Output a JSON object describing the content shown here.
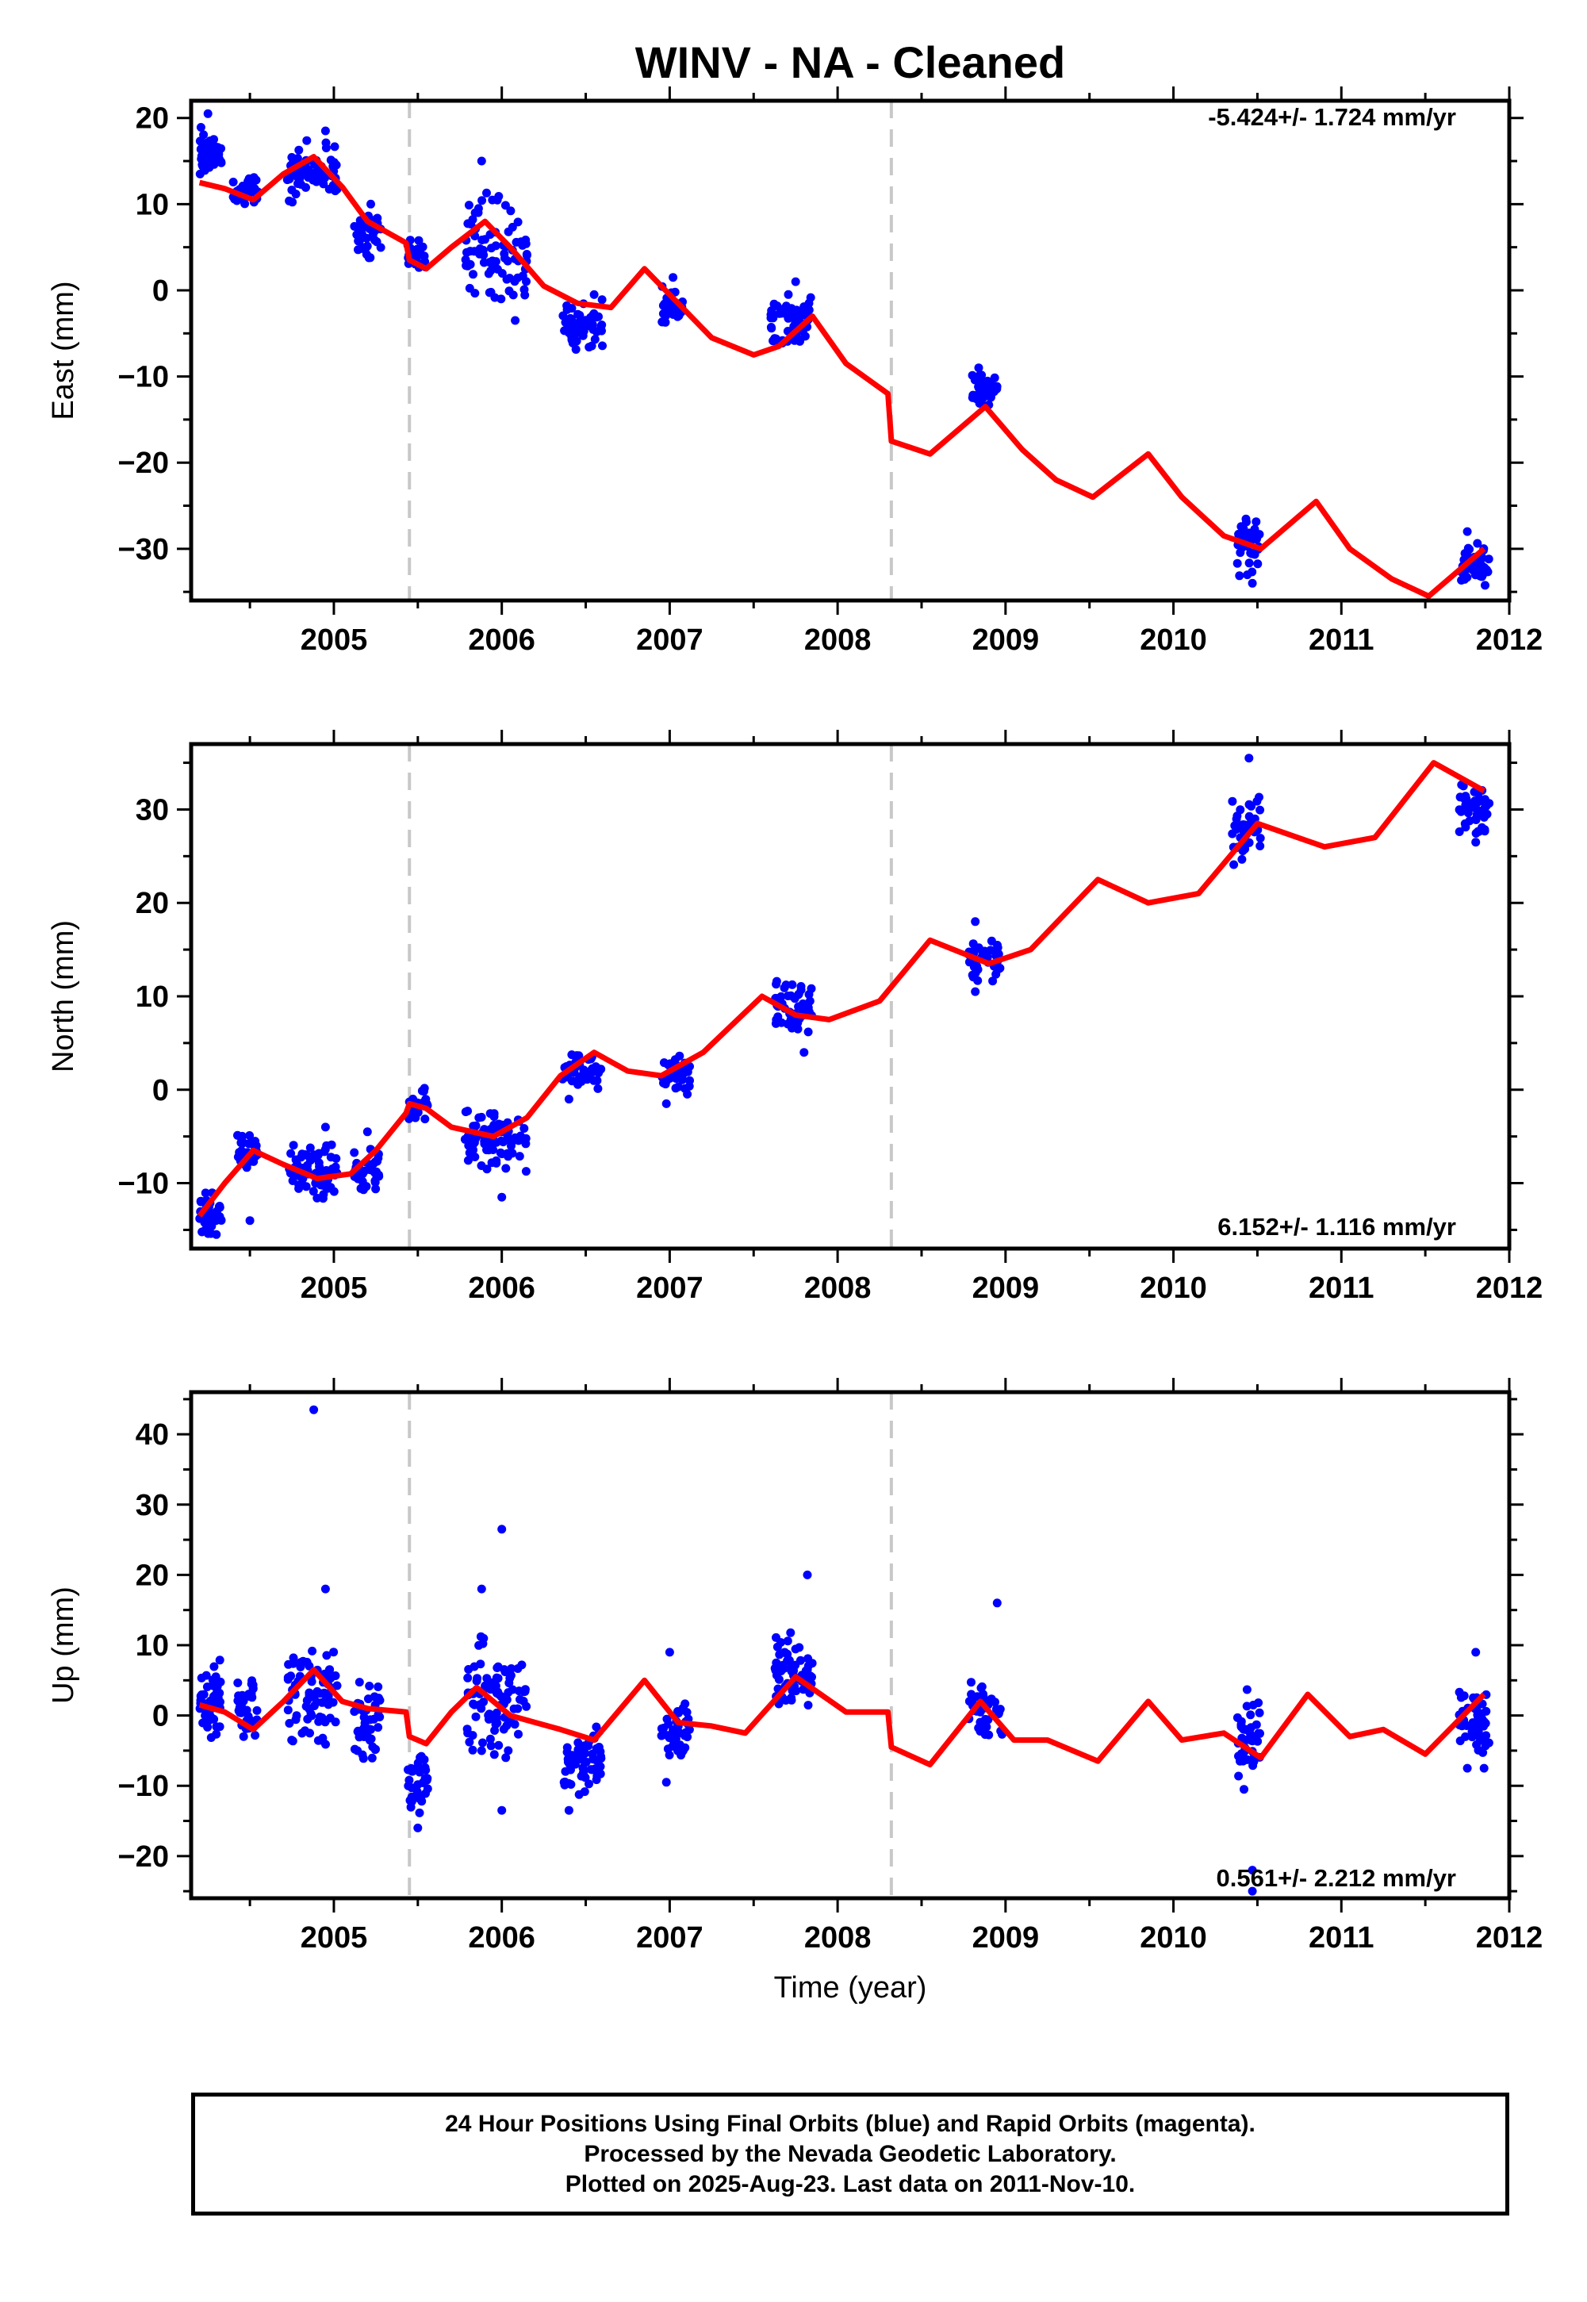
{
  "title": "WINV  - NA - Cleaned",
  "caption": {
    "line1": "24 Hour Positions Using Final Orbits (blue) and Rapid Orbits (magenta).",
    "line2": "Processed by the Nevada Geodetic Laboratory.",
    "line3": "Plotted on 2025-Aug-23. Last data on 2011-Nov-10."
  },
  "colors": {
    "data_points": "#0000ff",
    "model_line": "#ff0000",
    "offset_lines": "#c8c8c8"
  },
  "chart_data": [
    {
      "type": "scatter",
      "ylabel": "East (mm)",
      "xlabel": "",
      "rate_label": "-5.424+/- 1.724 mm/yr",
      "xlim": [
        2004.15,
        2012.0
      ],
      "ylim": [
        -36,
        22
      ],
      "xticks": [
        2005,
        2006,
        2007,
        2008,
        2009,
        2010,
        2011,
        2012
      ],
      "yticks": [
        20,
        10,
        0,
        -10,
        -20,
        -30
      ],
      "yticks_minor": [
        15,
        5,
        -5,
        -15,
        -25,
        -35
      ],
      "offsets": [
        2005.45,
        2008.32
      ],
      "clusters": [
        {
          "x": [
            2004.2,
            2004.33
          ],
          "y": [
            12.5,
            19.0
          ],
          "n": 40
        },
        {
          "x": [
            2004.4,
            2004.55
          ],
          "y": [
            9.5,
            13.5
          ],
          "n": 40
        },
        {
          "x": [
            2004.72,
            2005.02
          ],
          "y": [
            10.0,
            17.5
          ],
          "n": 70
        },
        {
          "x": [
            2005.12,
            2005.28
          ],
          "y": [
            3.0,
            9.5
          ],
          "n": 40
        },
        {
          "x": [
            2005.44,
            2005.55
          ],
          "y": [
            1.5,
            6.5
          ],
          "n": 25
        },
        {
          "x": [
            2005.78,
            2006.15
          ],
          "y": [
            -3.0,
            12.0
          ],
          "n": 80
        },
        {
          "x": [
            2006.36,
            2006.6
          ],
          "y": [
            -7.0,
            -1.0
          ],
          "n": 60
        },
        {
          "x": [
            2006.95,
            2007.08
          ],
          "y": [
            -4.0,
            1.0
          ],
          "n": 35
        },
        {
          "x": [
            2007.6,
            2007.85
          ],
          "y": [
            -7.0,
            0.5
          ],
          "n": 60
        },
        {
          "x": [
            2008.8,
            2008.95
          ],
          "y": [
            -14.0,
            -9.0
          ],
          "n": 40
        },
        {
          "x": [
            2010.38,
            2010.54
          ],
          "y": [
            -33.5,
            -26.0
          ],
          "n": 40
        },
        {
          "x": [
            2011.7,
            2011.88
          ],
          "y": [
            -34.5,
            -29.0
          ],
          "n": 50
        }
      ],
      "outliers": [
        [
          2004.25,
          20.5
        ],
        [
          2004.95,
          18.5
        ],
        [
          2005.22,
          10.0
        ],
        [
          2005.88,
          15.0
        ],
        [
          2006.08,
          -3.5
        ],
        [
          2006.55,
          -0.5
        ],
        [
          2007.02,
          1.5
        ],
        [
          2007.75,
          1.0
        ],
        [
          2008.84,
          -9.0
        ],
        [
          2010.47,
          -34.0
        ],
        [
          2011.75,
          -28.0
        ]
      ],
      "model": {
        "x": [
          2004.2,
          2004.35,
          2004.52,
          2004.7,
          2004.88,
          2005.05,
          2005.2,
          2005.43,
          2005.45,
          2005.55,
          2005.7,
          2005.9,
          2006.05,
          2006.25,
          2006.45,
          2006.65,
          2006.85,
          2007.05,
          2007.25,
          2007.5,
          2007.65,
          2007.85,
          2008.05,
          2008.3,
          2008.32,
          2008.55,
          2008.88,
          2009.1,
          2009.3,
          2009.52,
          2009.85,
          2010.05,
          2010.3,
          2010.52,
          2010.85,
          2011.05,
          2011.3,
          2011.52,
          2011.85
        ],
        "y": [
          12.5,
          11.8,
          10.5,
          13.5,
          15.5,
          12.0,
          8.0,
          5.5,
          3.5,
          2.5,
          5.0,
          8.0,
          5.0,
          0.5,
          -1.5,
          -2.0,
          2.5,
          -1.5,
          -5.5,
          -7.5,
          -6.5,
          -3.0,
          -8.5,
          -12.0,
          -17.5,
          -19.0,
          -13.5,
          -18.5,
          -22.0,
          -24.0,
          -19.0,
          -24.0,
          -28.5,
          -30.0,
          -24.5,
          -30.0,
          -33.5,
          -35.5,
          -30.0
        ]
      }
    },
    {
      "type": "scatter",
      "ylabel": "North (mm)",
      "xlabel": "",
      "rate_label": "6.152+/- 1.116 mm/yr",
      "xlim": [
        2004.15,
        2012.0
      ],
      "ylim": [
        -17,
        37
      ],
      "xticks": [
        2005,
        2006,
        2007,
        2008,
        2009,
        2010,
        2011,
        2012
      ],
      "yticks": [
        30,
        20,
        10,
        0,
        -10
      ],
      "yticks_minor": [
        35,
        25,
        15,
        5,
        -5,
        -15
      ],
      "offsets": [
        2005.45,
        2008.32
      ],
      "clusters": [
        {
          "x": [
            2004.2,
            2004.33
          ],
          "y": [
            -16.0,
            -10.0
          ],
          "n": 40
        },
        {
          "x": [
            2004.42,
            2004.55
          ],
          "y": [
            -8.5,
            -4.5
          ],
          "n": 35
        },
        {
          "x": [
            2004.72,
            2005.02
          ],
          "y": [
            -12.5,
            -5.0
          ],
          "n": 70
        },
        {
          "x": [
            2005.12,
            2005.28
          ],
          "y": [
            -11.0,
            -6.0
          ],
          "n": 35
        },
        {
          "x": [
            2005.44,
            2005.56
          ],
          "y": [
            -3.5,
            0.5
          ],
          "n": 25
        },
        {
          "x": [
            2005.78,
            2006.15
          ],
          "y": [
            -9.0,
            -2.0
          ],
          "n": 80
        },
        {
          "x": [
            2006.36,
            2006.6
          ],
          "y": [
            0.0,
            4.5
          ],
          "n": 50
        },
        {
          "x": [
            2006.95,
            2007.12
          ],
          "y": [
            -0.5,
            4.5
          ],
          "n": 35
        },
        {
          "x": [
            2007.62,
            2007.85
          ],
          "y": [
            6.0,
            12.0
          ],
          "n": 60
        },
        {
          "x": [
            2008.78,
            2008.98
          ],
          "y": [
            11.5,
            16.5
          ],
          "n": 40
        },
        {
          "x": [
            2010.35,
            2010.52
          ],
          "y": [
            24.0,
            32.0
          ],
          "n": 45
        },
        {
          "x": [
            2011.7,
            2011.88
          ],
          "y": [
            27.0,
            33.0
          ],
          "n": 50
        }
      ],
      "outliers": [
        [
          2004.3,
          -15.5
        ],
        [
          2004.5,
          -14.0
        ],
        [
          2004.95,
          -4.0
        ],
        [
          2005.2,
          -4.5
        ],
        [
          2006.0,
          -11.5
        ],
        [
          2006.4,
          -1.0
        ],
        [
          2006.98,
          -1.5
        ],
        [
          2007.8,
          4.0
        ],
        [
          2008.82,
          18.0
        ],
        [
          2008.82,
          10.5
        ],
        [
          2010.45,
          35.5
        ],
        [
          2011.8,
          26.5
        ]
      ],
      "model": {
        "x": [
          2004.2,
          2004.35,
          2004.52,
          2004.7,
          2004.9,
          2005.1,
          2005.25,
          2005.43,
          2005.45,
          2005.55,
          2005.7,
          2005.95,
          2006.15,
          2006.35,
          2006.55,
          2006.75,
          2006.95,
          2007.2,
          2007.55,
          2007.75,
          2007.95,
          2008.25,
          2008.55,
          2008.9,
          2009.15,
          2009.55,
          2009.85,
          2010.15,
          2010.5,
          2010.9,
          2011.2,
          2011.55,
          2011.85
        ],
        "y": [
          -13.5,
          -10.0,
          -6.5,
          -8.0,
          -9.5,
          -9.0,
          -6.5,
          -2.5,
          -1.5,
          -2.0,
          -4.0,
          -5.0,
          -3.0,
          1.5,
          4.0,
          2.0,
          1.5,
          4.0,
          10.0,
          8.0,
          7.5,
          9.5,
          16.0,
          13.5,
          15.0,
          22.5,
          20.0,
          21.0,
          28.5,
          26.0,
          27.0,
          35.0,
          32.0
        ]
      }
    },
    {
      "type": "scatter",
      "ylabel": "Up (mm)",
      "xlabel": "Time (year)",
      "rate_label": "0.561+/- 2.212 mm/yr",
      "xlim": [
        2004.15,
        2012.0
      ],
      "ylim": [
        -26,
        46
      ],
      "xticks": [
        2005,
        2006,
        2007,
        2008,
        2009,
        2010,
        2011,
        2012
      ],
      "yticks": [
        40,
        30,
        20,
        10,
        0,
        -10,
        -20
      ],
      "yticks_minor": [
        45,
        35,
        25,
        15,
        5,
        -5,
        -15,
        -25
      ],
      "offsets": [
        2005.45,
        2008.32
      ],
      "clusters": [
        {
          "x": [
            2004.2,
            2004.33
          ],
          "y": [
            -4.0,
            9.0
          ],
          "n": 45
        },
        {
          "x": [
            2004.42,
            2004.55
          ],
          "y": [
            -4.0,
            6.0
          ],
          "n": 40
        },
        {
          "x": [
            2004.72,
            2005.02
          ],
          "y": [
            -5.0,
            11.0
          ],
          "n": 80
        },
        {
          "x": [
            2005.12,
            2005.28
          ],
          "y": [
            -7.0,
            6.0
          ],
          "n": 45
        },
        {
          "x": [
            2005.44,
            2005.56
          ],
          "y": [
            -14.0,
            -4.0
          ],
          "n": 35
        },
        {
          "x": [
            2005.78,
            2006.15
          ],
          "y": [
            -7.0,
            12.0
          ],
          "n": 90
        },
        {
          "x": [
            2006.36,
            2006.6
          ],
          "y": [
            -12.0,
            -1.0
          ],
          "n": 60
        },
        {
          "x": [
            2006.95,
            2007.12
          ],
          "y": [
            -7.0,
            3.0
          ],
          "n": 40
        },
        {
          "x": [
            2007.62,
            2007.85
          ],
          "y": [
            1.0,
            12.0
          ],
          "n": 65
        },
        {
          "x": [
            2008.78,
            2008.98
          ],
          "y": [
            -3.5,
            5.0
          ],
          "n": 40
        },
        {
          "x": [
            2010.38,
            2010.52
          ],
          "y": [
            -9.0,
            4.0
          ],
          "n": 40
        },
        {
          "x": [
            2011.7,
            2011.88
          ],
          "y": [
            -6.0,
            5.0
          ],
          "n": 50
        }
      ],
      "outliers": [
        [
          2004.88,
          43.5
        ],
        [
          2004.95,
          18.0
        ],
        [
          2005.88,
          18.0
        ],
        [
          2006.0,
          26.5
        ],
        [
          2006.0,
          -13.5
        ],
        [
          2005.5,
          -16.0
        ],
        [
          2006.4,
          -13.5
        ],
        [
          2007.0,
          9.0
        ],
        [
          2006.98,
          -9.5
        ],
        [
          2007.82,
          20.0
        ],
        [
          2008.95,
          16.0
        ],
        [
          2010.47,
          -22.0
        ],
        [
          2010.47,
          -25.0
        ],
        [
          2010.42,
          -10.5
        ],
        [
          2011.8,
          9.0
        ],
        [
          2011.75,
          -7.5
        ],
        [
          2011.85,
          -7.5
        ]
      ],
      "model": {
        "x": [
          2004.2,
          2004.35,
          2004.52,
          2004.7,
          2004.88,
          2005.05,
          2005.2,
          2005.43,
          2005.45,
          2005.55,
          2005.7,
          2005.85,
          2006.05,
          2006.2,
          2006.35,
          2006.55,
          2006.85,
          2007.05,
          2007.25,
          2007.45,
          2007.75,
          2008.05,
          2008.3,
          2008.32,
          2008.55,
          2008.85,
          2009.05,
          2009.25,
          2009.55,
          2009.85,
          2010.05,
          2010.3,
          2010.52,
          2010.8,
          2011.05,
          2011.25,
          2011.5,
          2011.85
        ],
        "y": [
          1.5,
          0.5,
          -2.0,
          2.0,
          6.5,
          2.0,
          1.0,
          0.5,
          -3.0,
          -4.0,
          0.5,
          4.0,
          0.0,
          -1.0,
          -2.0,
          -3.5,
          5.0,
          -1.0,
          -1.5,
          -2.5,
          5.5,
          0.5,
          0.5,
          -4.5,
          -7.0,
          2.0,
          -3.5,
          -3.5,
          -6.5,
          2.0,
          -3.5,
          -2.5,
          -6.0,
          3.0,
          -3.0,
          -2.0,
          -5.5,
          3.0
        ]
      }
    }
  ]
}
